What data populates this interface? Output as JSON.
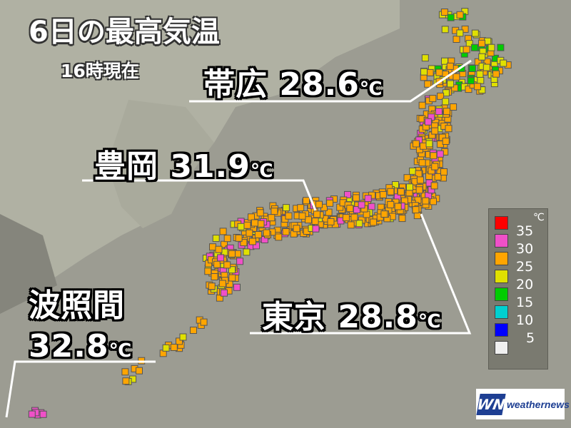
{
  "title": "6日の最高気温",
  "subtitle": "16時現在",
  "callouts": [
    {
      "city": "帯広",
      "value": "28.6",
      "unit": "℃"
    },
    {
      "city": "豊岡",
      "value": "31.9",
      "unit": "℃"
    },
    {
      "city": "東京",
      "value": "28.8",
      "unit": "℃"
    },
    {
      "city": "波照間",
      "value": "32.8",
      "unit": "℃"
    }
  ],
  "legend": {
    "unit": "℃",
    "items": [
      {
        "label": "35",
        "color": "#ff0000"
      },
      {
        "label": "30",
        "color": "#f050c8"
      },
      {
        "label": "25",
        "color": "#ffa500"
      },
      {
        "label": "20",
        "color": "#e0e000"
      },
      {
        "label": "15",
        "color": "#00cc00"
      },
      {
        "label": "10",
        "color": "#00d0d0"
      },
      {
        "label": "5",
        "color": "#0000ff"
      },
      {
        "label": "",
        "color": "#f0f0f0"
      }
    ]
  },
  "logo": {
    "mark": "WN",
    "text": "weathernews"
  }
}
